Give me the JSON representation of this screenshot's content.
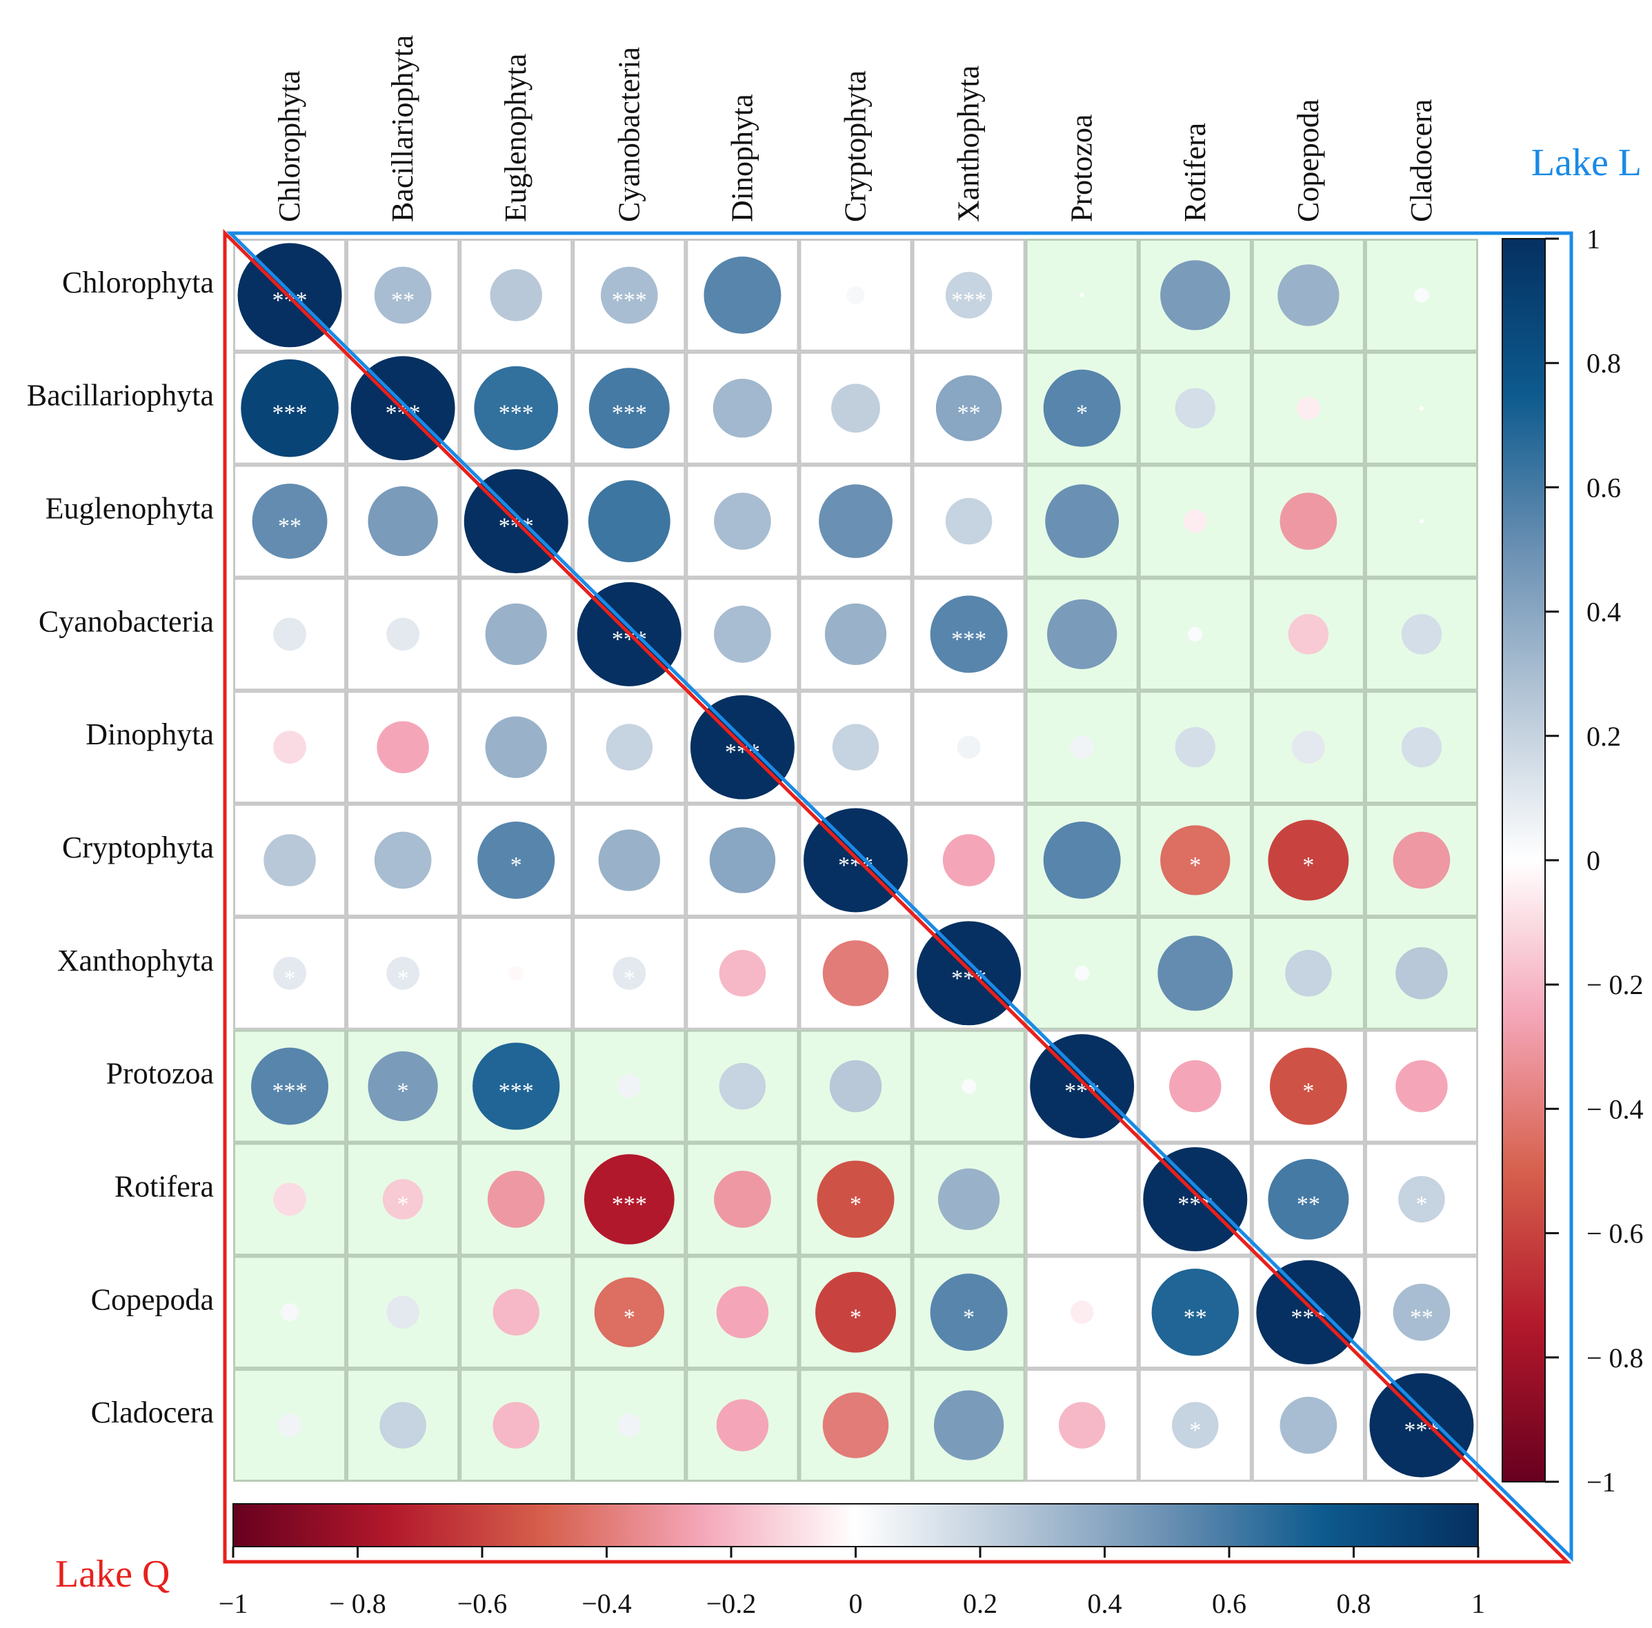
{
  "chart_data": {
    "type": "heatmap",
    "variables": [
      "Chlorophyta",
      "Bacillariophyta",
      "Euglenophyta",
      "Cyanobacteria",
      "Dinophyta",
      "Cryptophyta",
      "Xanthophyta",
      "Protozoa",
      "Rotifera",
      "Copepoda",
      "Cladocera"
    ],
    "matrix": [
      [
        1.0,
        0.3,
        0.25,
        0.3,
        0.55,
        0.03,
        0.2,
        0.0,
        0.45,
        0.35,
        0.02
      ],
      [
        0.88,
        1.0,
        0.65,
        0.6,
        0.32,
        0.22,
        0.4,
        0.55,
        0.15,
        -0.05,
        0.0
      ],
      [
        0.52,
        0.45,
        1.0,
        0.62,
        0.3,
        0.5,
        0.2,
        0.5,
        -0.05,
        -0.3,
        0.0
      ],
      [
        0.1,
        0.1,
        0.35,
        1.0,
        0.3,
        0.35,
        0.55,
        0.45,
        0.02,
        -0.15,
        0.15
      ],
      [
        -0.1,
        -0.25,
        0.35,
        0.2,
        1.0,
        0.2,
        0.05,
        0.05,
        0.15,
        0.1,
        0.15
      ],
      [
        0.25,
        0.3,
        0.55,
        0.35,
        0.4,
        1.0,
        -0.25,
        0.55,
        -0.45,
        -0.6,
        -0.3
      ],
      [
        0.1,
        0.1,
        -0.02,
        0.1,
        -0.2,
        -0.4,
        1.0,
        0.02,
        0.52,
        0.2,
        0.25
      ],
      [
        0.55,
        0.45,
        0.7,
        0.05,
        0.2,
        0.25,
        0.02,
        1.0,
        -0.25,
        -0.55,
        -0.25
      ],
      [
        -0.1,
        -0.15,
        -0.3,
        -0.75,
        -0.3,
        -0.55,
        0.35,
        0.0,
        1.0,
        0.6,
        0.2
      ],
      [
        0.03,
        0.1,
        -0.2,
        -0.45,
        -0.25,
        -0.6,
        0.55,
        -0.05,
        0.7,
        1.0,
        0.3
      ],
      [
        0.05,
        0.2,
        -0.2,
        0.05,
        -0.25,
        -0.4,
        0.45,
        -0.2,
        0.2,
        0.3,
        1.0
      ]
    ],
    "significance": [
      [
        "***",
        "**",
        "",
        "***",
        "",
        "",
        "***",
        "",
        "",
        "",
        ""
      ],
      [
        "***",
        "***",
        "***",
        "***",
        "",
        "",
        "**",
        "*",
        "",
        "",
        ""
      ],
      [
        "**",
        "",
        "***",
        "",
        "",
        "",
        "",
        "",
        "",
        "",
        ""
      ],
      [
        "",
        "",
        "",
        "***",
        "",
        "",
        "***",
        "",
        "",
        "",
        ""
      ],
      [
        "",
        "",
        "",
        "",
        "***",
        "",
        "",
        "",
        "",
        "",
        ""
      ],
      [
        "",
        "",
        "*",
        "",
        "",
        "***",
        "",
        "",
        "*",
        "*",
        ""
      ],
      [
        "*",
        "*",
        "",
        "*",
        "",
        "",
        "***",
        "",
        "",
        "",
        ""
      ],
      [
        "***",
        "*",
        "***",
        "",
        "",
        "",
        "",
        "***",
        "",
        "*",
        ""
      ],
      [
        "",
        "*",
        "",
        "***",
        "",
        "*",
        "",
        "",
        "***",
        "**",
        "*"
      ],
      [
        "",
        "",
        "",
        "*",
        "",
        "*",
        "*",
        "",
        "**",
        "***",
        "**"
      ],
      [
        "",
        "",
        "",
        "",
        "",
        "",
        "",
        "",
        "*",
        "",
        "***"
      ]
    ],
    "upper_triangle_label": "Lake L",
    "lower_triangle_label": "Lake Q",
    "right_colorbar_ticks": [
      "1",
      "0.8",
      "0.6",
      "0.4",
      "0.2",
      "0",
      "− 0.2",
      "− 0.4",
      "− 0.6",
      "− 0.8",
      "−1"
    ],
    "bottom_colorbar_ticks": [
      "−1",
      "− 0.8",
      "−0.6",
      "−0.4",
      "−0.2",
      "0",
      "0.2",
      "0.4",
      "0.6",
      "0.8",
      "1"
    ],
    "color_range": [
      -1,
      1
    ],
    "highlighted_block": "phytoplankton × zooplankton"
  },
  "colors": {
    "negative": "#67001f",
    "neutral": "#ffffff",
    "positive": "#053061",
    "lake_l": "#1a8ae6",
    "lake_q": "#e8201c",
    "highlight": "#e6fbe6"
  }
}
